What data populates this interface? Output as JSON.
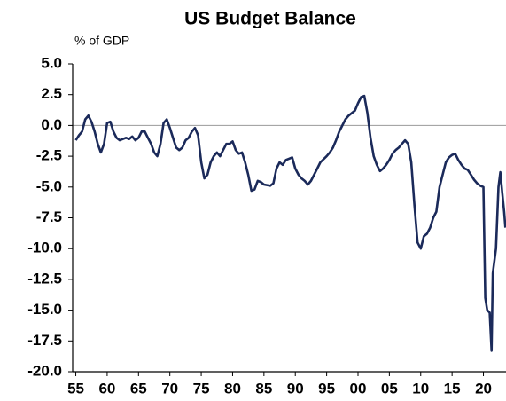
{
  "chart_data": {
    "type": "line",
    "title": "US Budget Balance",
    "subtitle": "% of GDP",
    "x": [
      1955,
      1955.5,
      1956,
      1956.5,
      1957,
      1957.5,
      1958,
      1958.5,
      1959,
      1959.5,
      1960,
      1960.5,
      1961,
      1961.5,
      1962,
      1963,
      1963.5,
      1964,
      1964.5,
      1965,
      1965.5,
      1966,
      1966.5,
      1967,
      1967.5,
      1968,
      1968.5,
      1969,
      1969.5,
      1970,
      1970.5,
      1971,
      1971.5,
      1972,
      1972.5,
      1973,
      1973.5,
      1974,
      1974.5,
      1975,
      1975.5,
      1976,
      1976.5,
      1977,
      1977.5,
      1978,
      1978.5,
      1979,
      1979.5,
      1980,
      1980.5,
      1981,
      1981.5,
      1982,
      1982.5,
      1983,
      1983.5,
      1984,
      1984.5,
      1985,
      1986,
      1986.5,
      1987,
      1987.5,
      1988,
      1988.5,
      1989,
      1989.5,
      1990,
      1990.5,
      1991,
      1991.5,
      1992,
      1992.5,
      1993,
      1993.5,
      1994,
      1995,
      1995.5,
      1996,
      1996.5,
      1997,
      1997.5,
      1998,
      1998.5,
      1999,
      1999.5,
      2000,
      2000.5,
      2001,
      2001.5,
      2002,
      2002.5,
      2003,
      2003.5,
      2004,
      2004.5,
      2005,
      2005.5,
      2006,
      2006.5,
      2007,
      2007.5,
      2008,
      2008.5,
      2009,
      2009.5,
      2010,
      2010.5,
      2011,
      2011.5,
      2012,
      2012.5,
      2013,
      2013.5,
      2014,
      2014.5,
      2015,
      2015.5,
      2016,
      2016.5,
      2017,
      2017.5,
      2018,
      2018.5,
      2019,
      2019.5,
      2020,
      2020.3,
      2020.6,
      2021,
      2021.3,
      2021.5,
      2022,
      2022.4,
      2022.7,
      2023,
      2023.3,
      2023.5
    ],
    "series": [
      {
        "name": "US Budget Balance",
        "color": "#1b2a5a",
        "values": [
          -1.2,
          -0.8,
          -0.5,
          0.5,
          0.8,
          0.3,
          -0.5,
          -1.5,
          -2.2,
          -1.5,
          0.2,
          0.3,
          -0.5,
          -1.0,
          -1.2,
          -1.0,
          -1.1,
          -0.9,
          -1.2,
          -1.0,
          -0.5,
          -0.5,
          -1.0,
          -1.5,
          -2.2,
          -2.5,
          -1.5,
          0.2,
          0.5,
          -0.2,
          -1.0,
          -1.8,
          -2.0,
          -1.8,
          -1.2,
          -1.0,
          -0.5,
          -0.2,
          -0.8,
          -3.0,
          -4.3,
          -4.0,
          -3.0,
          -2.5,
          -2.2,
          -2.5,
          -2.0,
          -1.5,
          -1.5,
          -1.3,
          -2.0,
          -2.3,
          -2.2,
          -3.0,
          -4.0,
          -5.3,
          -5.2,
          -4.5,
          -4.6,
          -4.8,
          -4.9,
          -4.7,
          -3.5,
          -3.0,
          -3.2,
          -2.8,
          -2.7,
          -2.6,
          -3.5,
          -4.0,
          -4.3,
          -4.5,
          -4.8,
          -4.5,
          -4.0,
          -3.5,
          -3.0,
          -2.5,
          -2.2,
          -1.8,
          -1.2,
          -0.5,
          0.0,
          0.5,
          0.8,
          1.0,
          1.2,
          1.8,
          2.3,
          2.4,
          1.0,
          -1.0,
          -2.5,
          -3.2,
          -3.7,
          -3.5,
          -3.2,
          -2.8,
          -2.3,
          -2.0,
          -1.8,
          -1.5,
          -1.2,
          -1.5,
          -3.0,
          -6.5,
          -9.5,
          -10.0,
          -9.0,
          -8.8,
          -8.3,
          -7.5,
          -7.0,
          -5.0,
          -4.0,
          -3.0,
          -2.6,
          -2.4,
          -2.3,
          -2.8,
          -3.2,
          -3.5,
          -3.6,
          -4.0,
          -4.4,
          -4.7,
          -4.9,
          -5.0,
          -14.0,
          -15.0,
          -15.2,
          -18.3,
          -12.0,
          -10.0,
          -5.0,
          -3.8,
          -5.5,
          -7.0,
          -8.3
        ]
      }
    ],
    "xlim": [
      1954.5,
      2023.6
    ],
    "xticks": [
      {
        "value": 1955,
        "label": "55"
      },
      {
        "value": 1960,
        "label": "60"
      },
      {
        "value": 1965,
        "label": "65"
      },
      {
        "value": 1970,
        "label": "70"
      },
      {
        "value": 1975,
        "label": "75"
      },
      {
        "value": 1980,
        "label": "80"
      },
      {
        "value": 1985,
        "label": "85"
      },
      {
        "value": 1990,
        "label": "90"
      },
      {
        "value": 1995,
        "label": "95"
      },
      {
        "value": 2000,
        "label": "00"
      },
      {
        "value": 2005,
        "label": "05"
      },
      {
        "value": 2010,
        "label": "10"
      },
      {
        "value": 2015,
        "label": "15"
      },
      {
        "value": 2020,
        "label": "20"
      }
    ],
    "ylim": [
      -20,
      5
    ],
    "yticks": [
      {
        "value": 5,
        "label": "5.0"
      },
      2.5,
      {
        "value": 0,
        "label": "0.0"
      },
      -2.5,
      {
        "value": -5,
        "label": "-5.0"
      },
      -7.5,
      {
        "value": -10,
        "label": "-10.0"
      },
      -12.5,
      {
        "value": -15,
        "label": "-15.0"
      },
      -17.5,
      {
        "value": -20,
        "label": "-20.0"
      }
    ],
    "zero_line": true
  }
}
